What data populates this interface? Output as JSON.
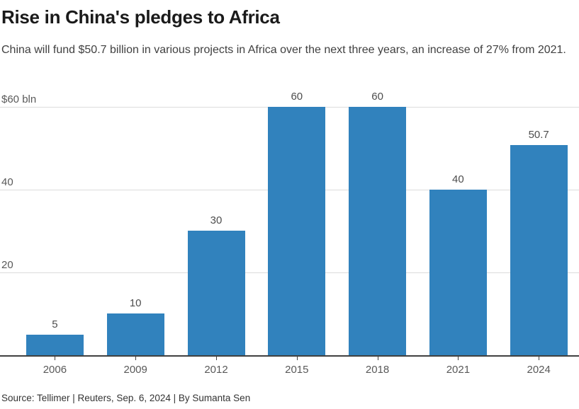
{
  "header": {
    "title": "Rise in China's pledges to Africa",
    "subtitle": "China will fund $50.7 billion in various projects in Africa over the next three years, an increase of 27% from 2021."
  },
  "chart_data": {
    "type": "bar",
    "categories": [
      "2006",
      "2009",
      "2012",
      "2015",
      "2018",
      "2021",
      "2024"
    ],
    "values": [
      5,
      10,
      30,
      60,
      60,
      40,
      50.7
    ],
    "value_labels": [
      "5",
      "10",
      "30",
      "60",
      "60",
      "40",
      "50.7"
    ],
    "title": "Rise in China's pledges to Africa",
    "xlabel": "",
    "ylabel": "$ bln",
    "ylim": [
      0,
      60
    ],
    "yticks": [
      {
        "value": 20,
        "label": "20"
      },
      {
        "value": 40,
        "label": "40"
      },
      {
        "value": 60,
        "label": "$60 bln"
      }
    ],
    "grid": true,
    "legend": false,
    "bar_color": "#3182bd"
  },
  "footer": {
    "source": "Source: Tellimer | Reuters, Sep. 6, 2024 | By Sumanta Sen"
  },
  "colors": {
    "bar": "#3182bd",
    "grid": "#dcdcdc",
    "axis": "#404040",
    "title_text": "#1a1a1a",
    "subtitle_text": "#404040",
    "label_text": "#595959",
    "value_text": "#4d4d4d"
  }
}
